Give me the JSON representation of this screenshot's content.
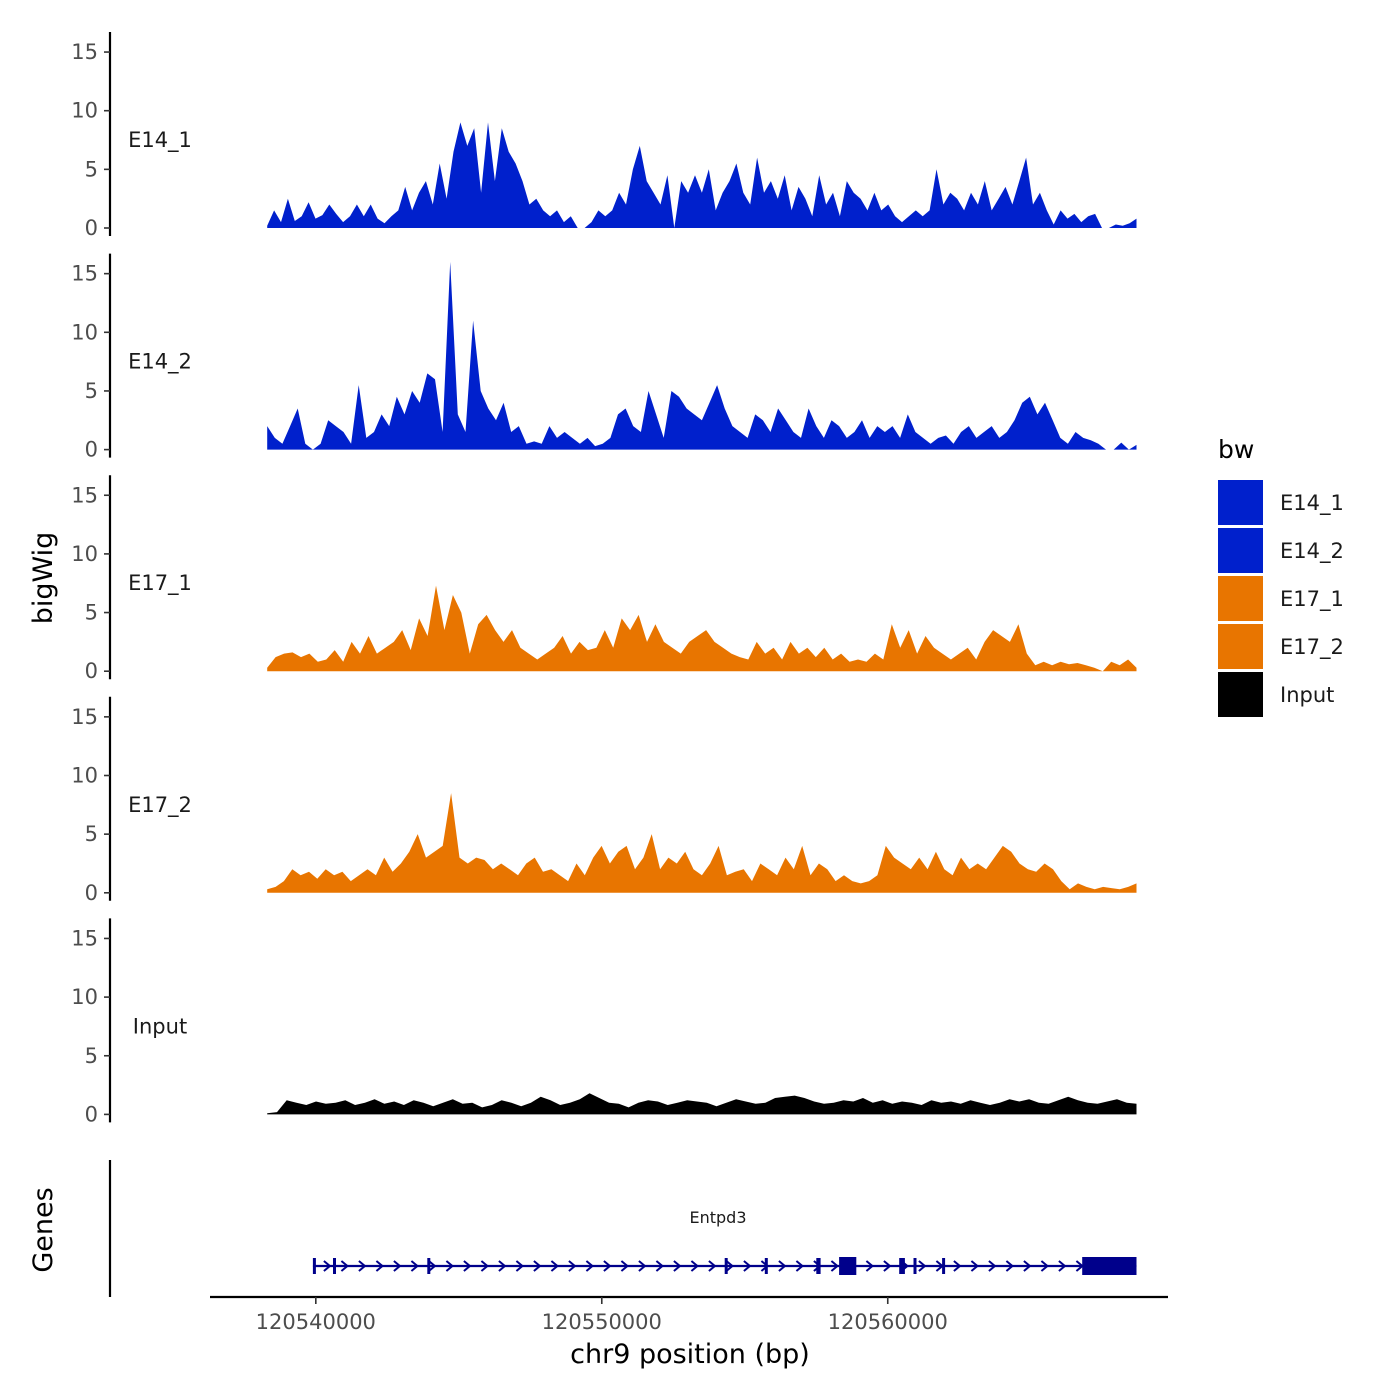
{
  "chart_data": {
    "type": "area",
    "chromosome": "chr9",
    "xlabel": "chr9 position (bp)",
    "ylabel": "bigWig",
    "genes_label": "Genes",
    "xlim": [
      120536300,
      120569800
    ],
    "x_ticks": [
      120540000,
      120550000,
      120560000
    ],
    "x_tick_labels": [
      "120540000",
      "120550000",
      "120560000"
    ],
    "ylim": [
      0,
      16
    ],
    "y_ticks": [
      0,
      5,
      10,
      15
    ],
    "y_tick_labels": [
      "0",
      "5",
      "10",
      "15"
    ],
    "legend": {
      "title": "bw",
      "entries": [
        {
          "name": "E14_1",
          "color": "#0020CC"
        },
        {
          "name": "E14_2",
          "color": "#0020CC"
        },
        {
          "name": "E17_1",
          "color": "#E87500"
        },
        {
          "name": "E17_2",
          "color": "#E87500"
        },
        {
          "name": "Input",
          "color": "#000000"
        }
      ]
    },
    "series": [
      {
        "name": "E14_1",
        "color": "#0020CC",
        "x_start": 120538300,
        "x_end": 120568700,
        "values": [
          0.2,
          1.5,
          0.5,
          2.5,
          0.6,
          1.0,
          2.2,
          0.8,
          1.1,
          2.0,
          1.2,
          0.5,
          1.0,
          2.0,
          1.0,
          2.0,
          0.8,
          0.4,
          1.0,
          1.5,
          3.5,
          1.5,
          3.0,
          4.0,
          2.0,
          5.5,
          2.5,
          6.5,
          9.0,
          7.0,
          8.5,
          3.0,
          9.0,
          4.0,
          8.5,
          6.5,
          5.5,
          4.0,
          2.0,
          2.5,
          1.5,
          1.0,
          1.5,
          0.5,
          1.0,
          0,
          0,
          0.5,
          1.5,
          1.0,
          1.5,
          3.0,
          2.0,
          5.0,
          7.0,
          4.0,
          3.0,
          2.0,
          4.5,
          0,
          4.0,
          3.0,
          4.5,
          3.0,
          5.0,
          1.5,
          3.0,
          4.0,
          5.5,
          3.0,
          2.0,
          6.0,
          3.0,
          4.0,
          2.5,
          4.5,
          1.5,
          3.5,
          2.5,
          1.0,
          4.5,
          2.0,
          3.0,
          1.0,
          4.0,
          3.0,
          2.5,
          1.5,
          3.0,
          1.5,
          2.0,
          1.0,
          0.5,
          1.0,
          1.5,
          1.0,
          1.5,
          5.0,
          2.0,
          3.0,
          2.5,
          1.5,
          3.0,
          2.0,
          4.0,
          1.5,
          2.5,
          3.5,
          2.0,
          4.0,
          6.0,
          2.0,
          3.0,
          1.5,
          0.3,
          1.5,
          0.8,
          1.2,
          0.5,
          1.0,
          1.2,
          0,
          0,
          0.3,
          0.2,
          0.4,
          0.8
        ]
      },
      {
        "name": "E14_2",
        "color": "#0020CC",
        "x_start": 120538300,
        "x_end": 120568700,
        "values": [
          2.0,
          1.0,
          0.5,
          2.0,
          3.5,
          0.5,
          0,
          0.5,
          2.5,
          2.0,
          1.5,
          0.5,
          5.5,
          1.0,
          1.5,
          3.0,
          2.0,
          4.5,
          3.0,
          5.0,
          4.0,
          6.5,
          6.0,
          1.5,
          16.0,
          3.0,
          1.5,
          11.0,
          5.0,
          3.5,
          2.5,
          4.0,
          1.5,
          2.0,
          0.5,
          0.7,
          0.5,
          2.0,
          1.0,
          1.5,
          1.0,
          0.5,
          1.0,
          0.3,
          0.5,
          1.0,
          3.0,
          3.5,
          2.0,
          1.5,
          5.0,
          3.0,
          1.0,
          5.0,
          4.5,
          3.5,
          3.0,
          2.5,
          4.0,
          5.5,
          3.5,
          2.0,
          1.5,
          1.0,
          3.0,
          2.5,
          1.5,
          3.5,
          2.5,
          1.5,
          1.0,
          3.5,
          2.0,
          1.0,
          2.5,
          2.0,
          1.0,
          1.5,
          2.5,
          1.0,
          2.0,
          1.5,
          2.0,
          1.0,
          3.0,
          1.5,
          1.0,
          0.5,
          1.0,
          1.2,
          0.5,
          1.5,
          2.0,
          1.0,
          1.5,
          2.0,
          1.0,
          1.5,
          2.5,
          4.0,
          4.5,
          3.0,
          4.0,
          2.5,
          1.0,
          0.5,
          1.5,
          1.0,
          0.8,
          0.5,
          0,
          0,
          0.6,
          0,
          0.4
        ]
      },
      {
        "name": "E17_1",
        "color": "#E87500",
        "x_start": 120538300,
        "x_end": 120568700,
        "values": [
          0.3,
          1.2,
          1.5,
          1.6,
          1.2,
          1.5,
          0.8,
          1.0,
          1.8,
          0.8,
          2.5,
          1.5,
          3.0,
          1.5,
          2.0,
          2.5,
          3.5,
          1.8,
          4.5,
          3.0,
          7.3,
          3.5,
          6.5,
          5.0,
          1.5,
          4.0,
          4.8,
          3.5,
          2.5,
          3.5,
          2.0,
          1.5,
          1.0,
          1.5,
          2.0,
          3.0,
          1.5,
          2.5,
          1.8,
          2.0,
          3.5,
          2.0,
          4.5,
          3.5,
          4.8,
          2.5,
          4.0,
          2.5,
          2.0,
          1.5,
          2.5,
          3.0,
          3.5,
          2.5,
          2.0,
          1.5,
          1.2,
          1.0,
          2.5,
          1.5,
          2.0,
          1.0,
          2.5,
          1.5,
          2.0,
          1.2,
          2.0,
          1.0,
          1.5,
          0.8,
          1.0,
          0.8,
          1.5,
          1.0,
          4.0,
          2.0,
          3.5,
          1.5,
          3.0,
          2.0,
          1.5,
          1.0,
          1.5,
          2.0,
          1.0,
          2.5,
          3.5,
          3.0,
          2.5,
          4.0,
          1.5,
          0.5,
          0.8,
          0.5,
          0.8,
          0.6,
          0.7,
          0.5,
          0.3,
          0,
          0.8,
          0.5,
          1.0,
          0.3
        ]
      },
      {
        "name": "E17_2",
        "color": "#E87500",
        "x_start": 120538300,
        "x_end": 120568700,
        "values": [
          0.3,
          0.5,
          1.0,
          2.0,
          1.5,
          1.8,
          1.2,
          2.0,
          1.5,
          1.8,
          1.0,
          1.5,
          2.0,
          1.5,
          3.0,
          1.8,
          2.5,
          3.5,
          5.0,
          3.0,
          3.5,
          4.0,
          8.5,
          3.0,
          2.5,
          3.0,
          2.8,
          2.0,
          2.5,
          2.0,
          1.5,
          2.5,
          3.0,
          1.8,
          2.0,
          1.5,
          1.0,
          2.5,
          1.5,
          3.0,
          4.0,
          2.5,
          3.5,
          4.0,
          2.0,
          3.0,
          5.0,
          2.0,
          3.0,
          2.5,
          3.5,
          2.0,
          1.5,
          2.5,
          4.0,
          1.5,
          1.8,
          2.0,
          1.0,
          2.5,
          2.0,
          1.5,
          3.0,
          2.0,
          4.0,
          1.5,
          2.5,
          2.0,
          1.0,
          1.5,
          1.0,
          0.8,
          1.0,
          1.5,
          4.0,
          3.0,
          2.5,
          2.0,
          3.0,
          2.0,
          3.5,
          2.0,
          1.5,
          3.0,
          2.0,
          2.5,
          2.0,
          3.0,
          4.0,
          3.5,
          2.5,
          2.0,
          1.8,
          2.5,
          2.0,
          1.0,
          0.3,
          0.8,
          0.5,
          0.3,
          0.5,
          0.4,
          0.3,
          0.5,
          0.8
        ]
      },
      {
        "name": "Input",
        "color": "#000000",
        "x_start": 120538300,
        "x_end": 120568700,
        "values": [
          0.1,
          0.2,
          1.2,
          1.0,
          0.8,
          1.1,
          0.9,
          1.0,
          1.2,
          0.8,
          1.0,
          1.3,
          0.9,
          1.1,
          0.8,
          1.2,
          1.0,
          0.7,
          1.0,
          1.3,
          0.9,
          1.0,
          0.6,
          0.8,
          1.2,
          1.0,
          0.7,
          1.0,
          1.5,
          1.2,
          0.8,
          1.0,
          1.3,
          1.8,
          1.4,
          1.0,
          0.9,
          0.6,
          1.0,
          1.2,
          1.1,
          0.8,
          1.0,
          1.2,
          1.1,
          1.0,
          0.7,
          1.0,
          1.3,
          1.1,
          0.9,
          1.0,
          1.4,
          1.5,
          1.6,
          1.4,
          1.1,
          0.9,
          1.0,
          1.2,
          1.1,
          1.4,
          1.0,
          1.2,
          0.9,
          1.1,
          1.0,
          0.8,
          1.2,
          1.0,
          1.1,
          0.9,
          1.2,
          1.0,
          0.8,
          1.0,
          1.3,
          1.1,
          1.3,
          1.0,
          0.9,
          1.2,
          1.5,
          1.2,
          1.0,
          0.9,
          1.1,
          1.3,
          1.0,
          0.9
        ]
      }
    ],
    "gene": {
      "name": "Entpd3",
      "color": "#00008B",
      "strand": "+",
      "start": 120539900,
      "end": 120568700,
      "exons": [
        [
          120539900,
          120540000
        ],
        [
          120540600,
          120540700
        ],
        [
          120543900,
          120544000
        ],
        [
          120554300,
          120554400
        ],
        [
          120555700,
          120555800
        ],
        [
          120557500,
          120557650
        ],
        [
          120558300,
          120558900
        ],
        [
          120560400,
          120560600
        ],
        [
          120560900,
          120561000
        ],
        [
          120561900,
          120562000
        ],
        [
          120566800,
          120568700
        ]
      ]
    }
  }
}
